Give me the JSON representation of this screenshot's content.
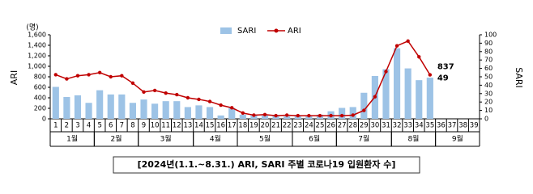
{
  "chart_data": {
    "type": "bar-line",
    "y_unit": "(명)",
    "ylabel": "ARI",
    "y2label": "SARI",
    "caption": "[2024년(1.1.~8.31.) ARI, SARI 주별 코로나19 입원환자 수]",
    "categories": [
      "1",
      "2",
      "3",
      "4",
      "5",
      "6",
      "7",
      "8",
      "9",
      "10",
      "11",
      "12",
      "13",
      "14",
      "15",
      "16",
      "17",
      "18",
      "19",
      "20",
      "21",
      "22",
      "23",
      "24",
      "25",
      "26",
      "27",
      "28",
      "29",
      "30",
      "31",
      "32",
      "33",
      "34",
      "35",
      "36",
      "37",
      "38",
      "39"
    ],
    "months": [
      {
        "label": "1월",
        "weeks": [
          1,
          4
        ]
      },
      {
        "label": "2월",
        "weeks": [
          5,
          8
        ]
      },
      {
        "label": "3월",
        "weeks": [
          9,
          13
        ]
      },
      {
        "label": "4월",
        "weeks": [
          14,
          17
        ]
      },
      {
        "label": "5월",
        "weeks": [
          18,
          22
        ]
      },
      {
        "label": "6월",
        "weeks": [
          23,
          26
        ]
      },
      {
        "label": "7월",
        "weeks": [
          27,
          31
        ]
      },
      {
        "label": "8월",
        "weeks": [
          32,
          35
        ]
      },
      {
        "label": "9월",
        "weeks": [
          36,
          39
        ]
      }
    ],
    "series": [
      {
        "name": "SARI",
        "type": "bar",
        "axis": "y2",
        "color": "#9dc3e6",
        "values": [
          38,
          26,
          28,
          19,
          34,
          29,
          29,
          19,
          23,
          18,
          21,
          21,
          14,
          16,
          14,
          4,
          13,
          5,
          4,
          4,
          4,
          3,
          4,
          4,
          5,
          9,
          13,
          14,
          31,
          51,
          59,
          84,
          60,
          46,
          49,
          null,
          null,
          null,
          null
        ]
      },
      {
        "name": "ARI",
        "type": "line",
        "color": "#c00000",
        "values": [
          840,
          760,
          820,
          840,
          880,
          800,
          820,
          680,
          510,
          540,
          490,
          460,
          400,
          370,
          330,
          260,
          210,
          110,
          70,
          80,
          60,
          70,
          60,
          60,
          60,
          60,
          60,
          70,
          160,
          420,
          900,
          1390,
          1480,
          1180,
          837,
          null,
          null,
          null,
          null
        ]
      }
    ],
    "ylim": [
      0,
      1600
    ],
    "yticks": [
      0,
      200,
      400,
      600,
      800,
      {
        "value": 1000,
        "label": "1,000"
      },
      {
        "value": 1200,
        "label": "1,200"
      },
      {
        "value": 1400,
        "label": "1,400"
      },
      {
        "value": 1600,
        "label": "1,600"
      }
    ],
    "y2lim": [
      0,
      100
    ],
    "y2ticks": [
      0,
      10,
      20,
      30,
      40,
      50,
      60,
      70,
      80,
      90,
      100
    ],
    "labeled_point": 34,
    "grid": false
  }
}
